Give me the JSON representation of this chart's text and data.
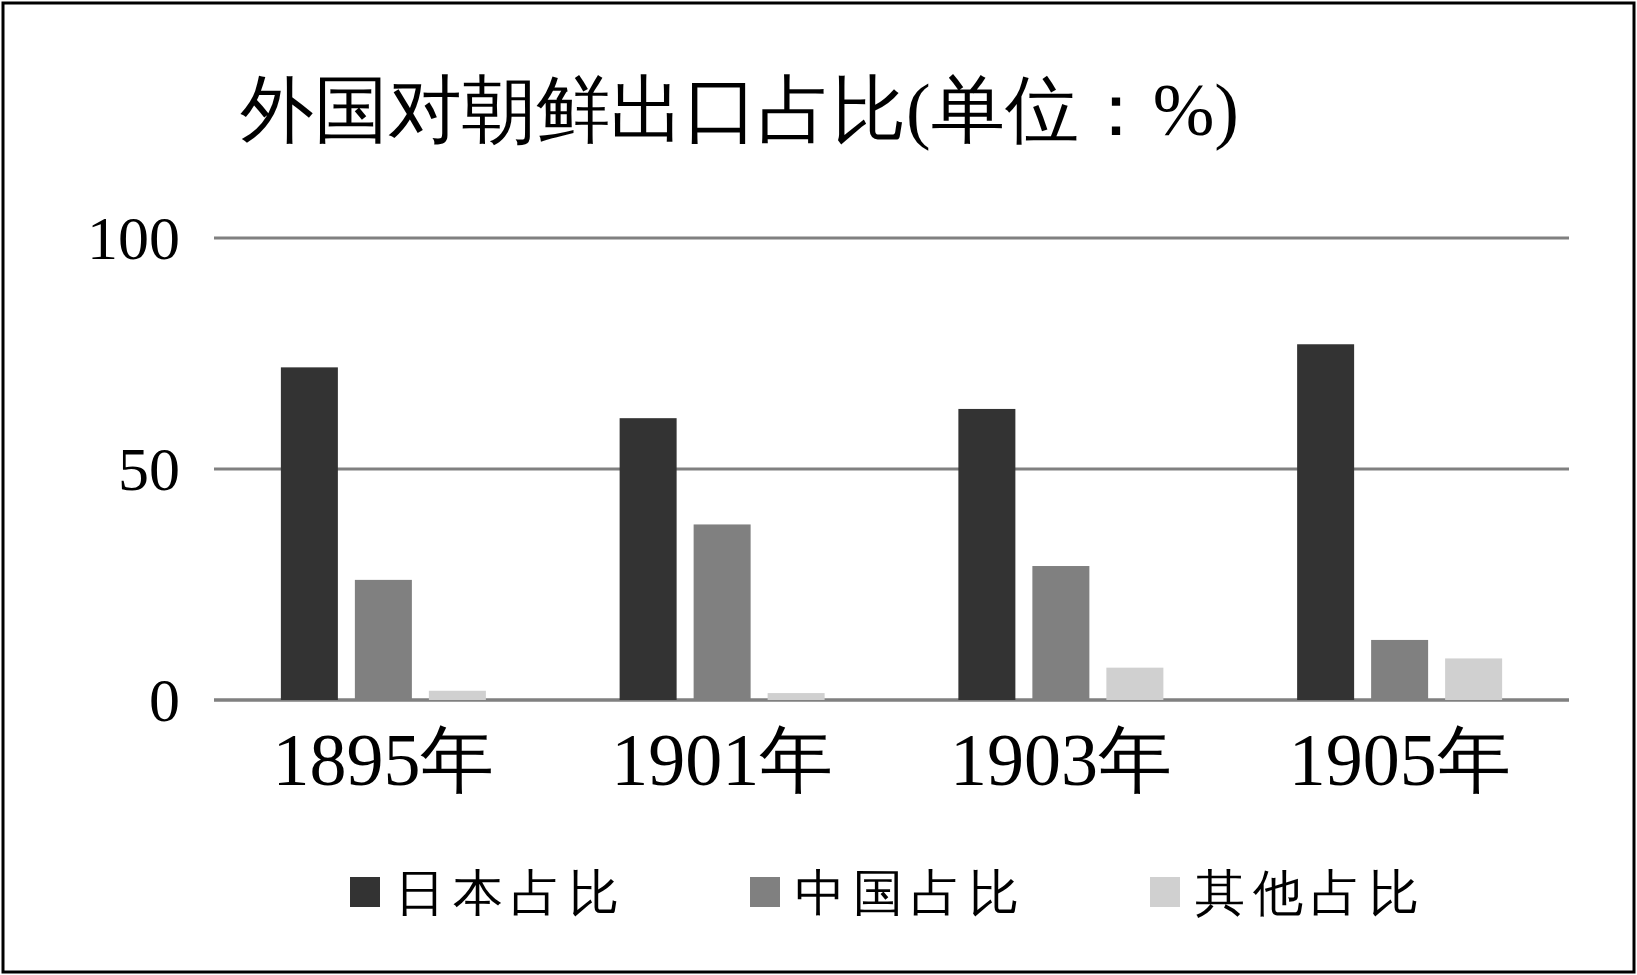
{
  "chart_data": {
    "type": "bar",
    "title": "外国对朝鲜出口占比(单位：%)",
    "categories": [
      "1895年",
      "1901年",
      "1903年",
      "1905年"
    ],
    "series": [
      {
        "name": "日本占比",
        "color": "#333333",
        "values": [
          72,
          61,
          63,
          77
        ]
      },
      {
        "name": "中国占比",
        "color": "#808080",
        "values": [
          26,
          38,
          29,
          13
        ]
      },
      {
        "name": "其他占比",
        "color": "#d0d0d0",
        "values": [
          2,
          1.5,
          7,
          9
        ]
      }
    ],
    "ylim": [
      0,
      100
    ],
    "yticks": [
      0,
      50,
      100
    ],
    "grid": "y",
    "legend": "bottom"
  }
}
